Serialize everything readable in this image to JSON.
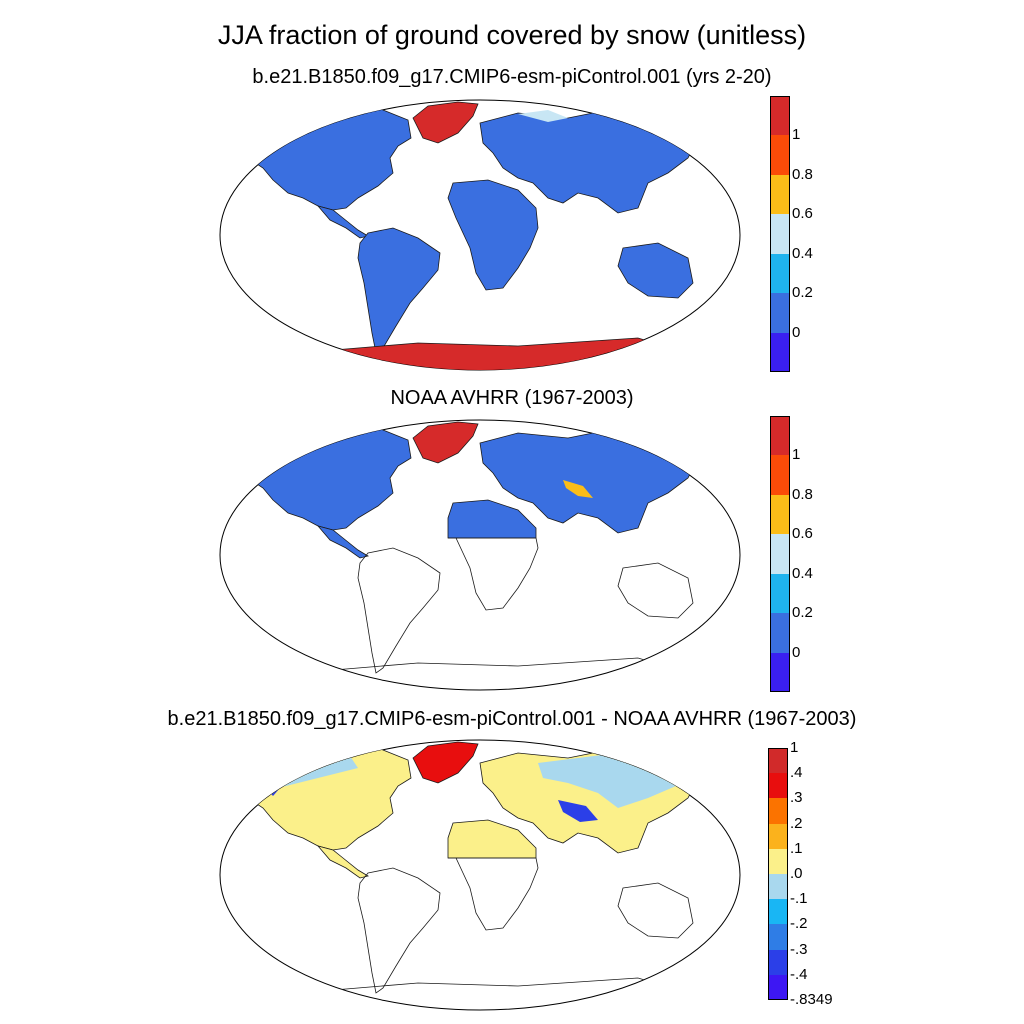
{
  "figure": {
    "title": "JJA fraction of ground covered by snow (unitless)"
  },
  "panels": [
    {
      "title": "b.e21.B1850.f09_g17.CMIP6-esm-piControl.001 (yrs 2-20)",
      "colorbar": {
        "colors": [
          "#3a1ff0",
          "#3a6fe0",
          "#1fb3ee",
          "#c8e6f4",
          "#fbbd18",
          "#fb4b08",
          "#d62a2a"
        ],
        "labels": [
          "0",
          "0.2",
          "0.4",
          "0.6",
          "0.8",
          "1"
        ]
      }
    },
    {
      "title": "NOAA AVHRR (1967-2003)",
      "colorbar": {
        "colors": [
          "#3a1ff0",
          "#3a6fe0",
          "#1fb3ee",
          "#c8e6f4",
          "#fbbd18",
          "#fb4b08",
          "#d62a2a"
        ],
        "labels": [
          "0",
          "0.2",
          "0.4",
          "0.6",
          "0.8",
          "1"
        ]
      }
    },
    {
      "title": "b.e21.B1850.f09_g17.CMIP6-esm-piControl.001 - NOAA AVHRR (1967-2003)",
      "colorbar": {
        "colors": [
          "#3d17f3",
          "#2b3fe8",
          "#2f7de6",
          "#19b6f4",
          "#a9d8ee",
          "#fbf08a",
          "#fbb21c",
          "#fb7300",
          "#e80e0e",
          "#d12a2a"
        ],
        "labels": [
          "-.8349",
          "-.4",
          "-.3",
          "-.2",
          "-.1",
          ".0",
          ".1",
          ".2",
          ".3",
          ".4",
          "1"
        ]
      }
    }
  ]
}
